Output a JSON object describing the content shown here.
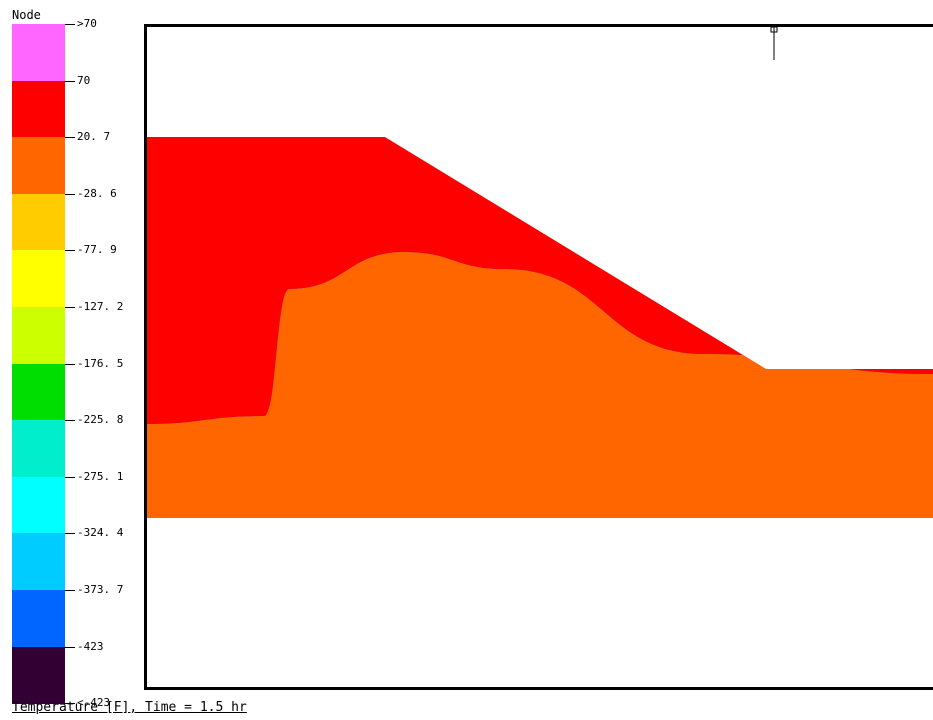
{
  "legend": {
    "title": "Node",
    "labels": [
      ">70",
      "70",
      "20. 7",
      "-28. 6",
      "-77. 9",
      "-127. 2",
      "-176. 5",
      "-225. 8",
      "-275. 1",
      "-324. 4",
      "-373. 7",
      "-423",
      "<-423"
    ],
    "colors": [
      "#ff66ff",
      "#ff0000",
      "#ff6600",
      "#ffcc00",
      "#ffff00",
      "#ccff00",
      "#00dd00",
      "#00eecc",
      "#00ffff",
      "#00ccff",
      "#0066ff",
      "#330033"
    ]
  },
  "caption": "Temperature [F], Time = 1.5 hr",
  "chart_data": {
    "type": "heatmap",
    "title": "",
    "quantity": "Temperature [F]",
    "time": "1.5 hr",
    "color_scale_levels": [
      70,
      20.7,
      -28.6,
      -77.9,
      -127.2,
      -176.5,
      -225.8,
      -275.1,
      -324.4,
      -373.7,
      -423
    ],
    "over_label": ">70",
    "under_label": "<-423",
    "grid": false
  }
}
